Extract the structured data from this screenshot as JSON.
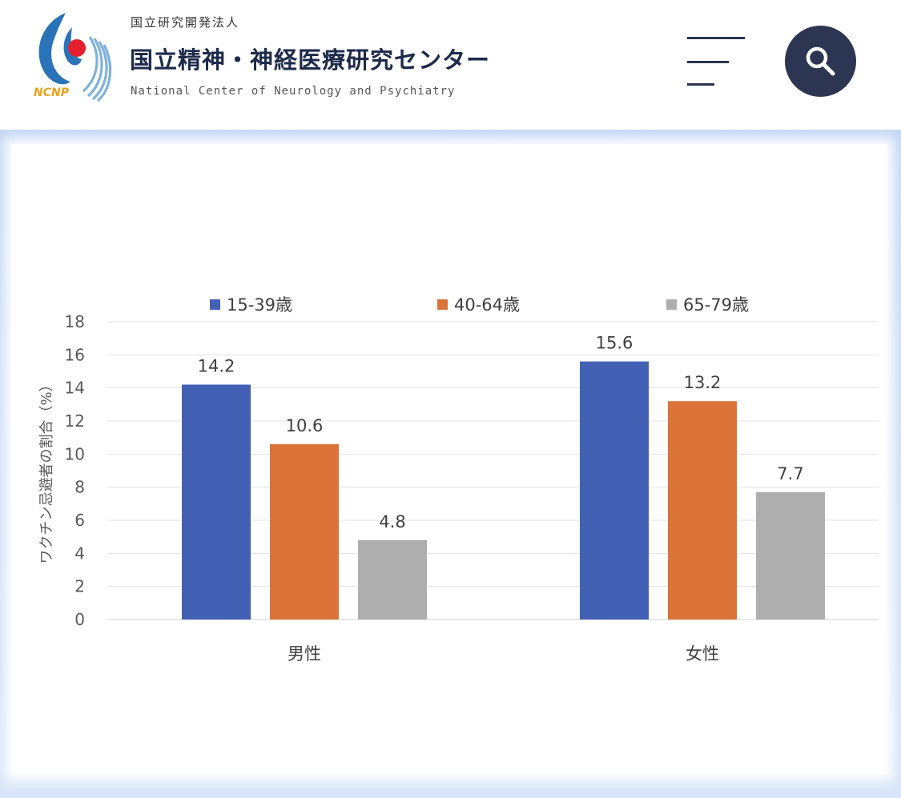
{
  "header": {
    "org_sub": "国立研究開発法人",
    "org_name": "国立精神・神経医療研究センター",
    "org_en": "National Center of Neurology and Psychiatry",
    "logo_text": "NCNP",
    "menu_icon": "hamburger-menu-icon",
    "search_icon": "magnifier-search-icon"
  },
  "colors": {
    "navy": "#2c3551",
    "logo_blue": "#2a73b8",
    "logo_red": "#e5202e",
    "logo_orange": "#e8a21a"
  },
  "chart_data": {
    "type": "bar",
    "categories": [
      "男性",
      "女性"
    ],
    "series": [
      {
        "name": "15-39歳",
        "color": "#4260b4",
        "values": [
          14.2,
          15.6
        ]
      },
      {
        "name": "40-64歳",
        "color": "#dc7338",
        "values": [
          10.6,
          13.2
        ]
      },
      {
        "name": "65-79歳",
        "color": "#aeaeae",
        "values": [
          4.8,
          7.7
        ]
      }
    ],
    "data_labels": [
      [
        "14.2",
        "10.6",
        "4.8"
      ],
      [
        "15.6",
        "13.2",
        "7.7"
      ]
    ],
    "title": "",
    "xlabel": "",
    "ylabel": "ワクチン忌避者の割合（%）",
    "ylim": [
      0,
      18
    ],
    "yticks": [
      "0",
      "2",
      "4",
      "6",
      "8",
      "10",
      "12",
      "14",
      "16",
      "18"
    ],
    "grid": true,
    "legend_position": "top"
  }
}
